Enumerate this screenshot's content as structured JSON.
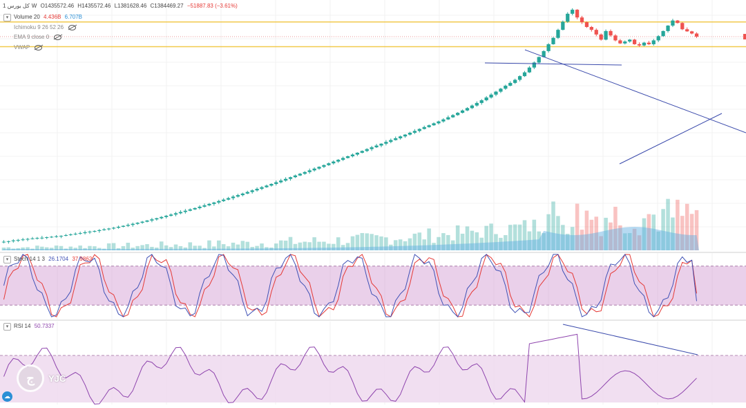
{
  "header": {
    "symbol": "کل بورس",
    "timeframe": "1W",
    "open": "O1435572.46",
    "high": "H1435572.46",
    "low": "L1381628.46",
    "close": "C1384469.27",
    "change": "−51887.83 (−3.61%)",
    "change_color": "#e53935"
  },
  "indicators": {
    "volume_label": "Volume 20",
    "volume_value1": "4.436B",
    "volume_value2": "6.707B",
    "ichimoku_label": "Ichimoku 9 26 52 26",
    "ema_label": "EMA 9 close 0",
    "vwap_label": "VWAP"
  },
  "stoch_panel": {
    "label": "Stoch 14 1 3",
    "k_value": "26.1704",
    "d_value": "37.9862",
    "k_color": "#3f51b5",
    "d_color": "#e53935",
    "band_upper": 80,
    "band_lower": 20
  },
  "rsi_panel": {
    "label": "RSI 14",
    "value": "50.7337",
    "line_color": "#8e44ad",
    "band_upper": 70,
    "band_lower": 30
  },
  "watermark": {
    "text": "YJC",
    "icon": "yjc-logo-icon"
  },
  "colors": {
    "up": "#26a69a",
    "down": "#ef5350",
    "level": "#f2c94c",
    "trend": "#3949ab",
    "volume_ma": "#5dade2",
    "band_fill": "#d9a9d9",
    "rsi_fill": "#efd9ef"
  },
  "chart_data": {
    "type": "candlestick",
    "timeframe": "1W",
    "scale": "log",
    "horizontal_levels": [
      1890000,
      1120000
    ],
    "close_series": [
      18000,
      18200,
      18500,
      18700,
      18900,
      19100,
      19300,
      19500,
      19600,
      19800,
      20000,
      20200,
      20400,
      20700,
      21000,
      21300,
      21600,
      22000,
      22300,
      22600,
      23000,
      23400,
      23800,
      24200,
      24700,
      25200,
      25700,
      26300,
      26900,
      27500,
      28200,
      28900,
      29600,
      30400,
      31200,
      32000,
      32900,
      33800,
      34700,
      35700,
      36700,
      37800,
      38900,
      40100,
      41300,
      42600,
      43900,
      45300,
      46800,
      48300,
      49900,
      51600,
      53400,
      55200,
      57100,
      59100,
      61200,
      63400,
      65700,
      68100,
      70600,
      73200,
      75900,
      78700,
      81600,
      84700,
      87900,
      91200,
      94700,
      98300,
      102000,
      106000,
      110000,
      114000,
      118500,
      123000,
      128000,
      133000,
      138000,
      143500,
      149000,
      155000,
      161000,
      167500,
      174000,
      181000,
      188000,
      196000,
      204000,
      212000,
      221000,
      230000,
      240000,
      251000,
      263000,
      276000,
      290000,
      305000,
      322000,
      340000,
      360000,
      382000,
      406000,
      432000,
      460000,
      490000,
      520000,
      555000,
      600000,
      650000,
      720000,
      800000,
      900000,
      1020000,
      1180000,
      1350000,
      1600000,
      1900000,
      2250000,
      2450000,
      2080000,
      1880000,
      1700000,
      1600000,
      1450000,
      1300000,
      1560000,
      1420000,
      1280000,
      1200000,
      1250000,
      1300000,
      1180000,
      1150000,
      1220000,
      1180000,
      1280000,
      1400000,
      1560000,
      1750000,
      1950000,
      1850000,
      1620000,
      1550000,
      1480000,
      1384469
    ],
    "stoch_k_last": 26.1704,
    "stoch_d_last": 37.9862,
    "rsi_last": 50.7337
  }
}
